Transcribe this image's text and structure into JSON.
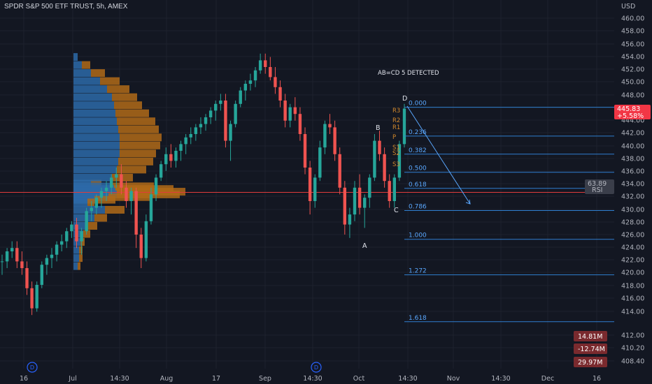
{
  "header": {
    "title": "SPDR S&P 500 ETF TRUST, 5h, AMEX"
  },
  "currency": "USD",
  "axis_right": {
    "ticks": [
      "460.00",
      "458.00",
      "456.00",
      "454.00",
      "452.00",
      "450.00",
      "448.00",
      "446.00",
      "444.00",
      "442.00",
      "440.00",
      "438.00",
      "436.00",
      "434.00",
      "432.00",
      "430.00",
      "428.00",
      "426.00",
      "424.00",
      "422.00",
      "420.00",
      "418.00",
      "416.00",
      "414.00",
      "412.00",
      "410.20",
      "408.40"
    ]
  },
  "axis_bottom": {
    "ticks": [
      "16",
      "Jul",
      "14:30",
      "Aug",
      "17",
      "Sep",
      "14:30",
      "Oct",
      "14:30",
      "Nov",
      "14:30",
      "Dec",
      "16"
    ]
  },
  "price_badge": {
    "price": "445.83",
    "change": "+5.58%",
    "color": "#f23645"
  },
  "rsi_badge": {
    "value": "63.89",
    "label": "RSI"
  },
  "volume_badges": [
    "14.81M",
    "-12.74M",
    "29.97M"
  ],
  "pattern": {
    "label": "AB=CD 5 DETECTED",
    "points": [
      {
        "name": "A",
        "price": 426.5
      },
      {
        "name": "B",
        "price": 442.0
      },
      {
        "name": "C",
        "price": 430.8
      },
      {
        "name": "D",
        "price": 446.5
      }
    ]
  },
  "fib_levels": [
    {
      "label": "0.000",
      "price": 446.0
    },
    {
      "label": "0.236",
      "price": 441.7
    },
    {
      "label": "0.382",
      "price": 439.0
    },
    {
      "label": "0.500",
      "price": 436.3
    },
    {
      "label": "0.618",
      "price": 433.9
    },
    {
      "label": "0.786",
      "price": 430.6
    },
    {
      "label": "1.000",
      "price": 426.3
    },
    {
      "label": "1.272",
      "price": 421.0
    },
    {
      "label": "1.618",
      "price": 414.0
    }
  ],
  "pivots": [
    "R3",
    "R2",
    "R1",
    "P",
    "S1",
    "S2",
    "S3"
  ],
  "event_markers": [
    "D",
    "D"
  ],
  "chart_data": {
    "type": "candlestick",
    "ylim": [
      407,
      462
    ],
    "poc_price": 433.3,
    "candles": [
      [
        423,
        424,
        421,
        423
      ],
      [
        423,
        425,
        422,
        424.5
      ],
      [
        424.5,
        426,
        423.5,
        425
      ],
      [
        425,
        426,
        422,
        423
      ],
      [
        423,
        424.5,
        421,
        422
      ],
      [
        422,
        423,
        418,
        419
      ],
      [
        419,
        420,
        415,
        416
      ],
      [
        416,
        420,
        415.5,
        419.5
      ],
      [
        419.5,
        423,
        419,
        422.5
      ],
      [
        422.5,
        424,
        421,
        423.5
      ],
      [
        423.5,
        425,
        422,
        424
      ],
      [
        424,
        426,
        423,
        425.5
      ],
      [
        425.5,
        427,
        424.5,
        426
      ],
      [
        426,
        428,
        425,
        427.5
      ],
      [
        427.5,
        429,
        426.5,
        428.5
      ],
      [
        428.5,
        429.5,
        425,
        426
      ],
      [
        426,
        428,
        424,
        427.5
      ],
      [
        427.5,
        431,
        427,
        430.5
      ],
      [
        430.5,
        432,
        429,
        431
      ],
      [
        431,
        433,
        430,
        432.5
      ],
      [
        432.5,
        434,
        431,
        433.5
      ],
      [
        433.5,
        435,
        432,
        434
      ],
      [
        434,
        436,
        433,
        435.5
      ],
      [
        435.5,
        437,
        434,
        436
      ],
      [
        436,
        437.5,
        433,
        434
      ],
      [
        434,
        435,
        431,
        432
      ],
      [
        432,
        434,
        430,
        433.5
      ],
      [
        433.5,
        434,
        425,
        427
      ],
      [
        427,
        428,
        422,
        423.5
      ],
      [
        423.5,
        430,
        423,
        429
      ],
      [
        429,
        434,
        428.5,
        433
      ],
      [
        433,
        436,
        432,
        435.5
      ],
      [
        435.5,
        438,
        435,
        437.5
      ],
      [
        437.5,
        440,
        436.5,
        439
      ],
      [
        439,
        440.5,
        437,
        438
      ],
      [
        438,
        440,
        437,
        439.5
      ],
      [
        439.5,
        441,
        438,
        440.5
      ],
      [
        440.5,
        442,
        439,
        441.5
      ],
      [
        441.5,
        443,
        440.5,
        442
      ],
      [
        442,
        443.5,
        441,
        443
      ],
      [
        443,
        444.5,
        442,
        443.5
      ],
      [
        443.5,
        445,
        442.5,
        444.5
      ],
      [
        444.5,
        446,
        443.5,
        445.5
      ],
      [
        445.5,
        447,
        444,
        446.5
      ],
      [
        446.5,
        448,
        445.5,
        447
      ],
      [
        447,
        448,
        440,
        441
      ],
      [
        441,
        444,
        438,
        443.5
      ],
      [
        443.5,
        447,
        443,
        446.5
      ],
      [
        446.5,
        449,
        446,
        448.5
      ],
      [
        448.5,
        450,
        447,
        449.5
      ],
      [
        449.5,
        451,
        448.5,
        450
      ],
      [
        450,
        452,
        449,
        451.5
      ],
      [
        451.5,
        454,
        451,
        453
      ],
      [
        453,
        454,
        451,
        452
      ],
      [
        452,
        453.5,
        450,
        450.5
      ],
      [
        450.5,
        452,
        448,
        449
      ],
      [
        449,
        450,
        446,
        447
      ],
      [
        447,
        448,
        443,
        444
      ],
      [
        444,
        446.5,
        443,
        446
      ],
      [
        446,
        447.5,
        444,
        445
      ],
      [
        445,
        446,
        441,
        442
      ],
      [
        442,
        443,
        436,
        437
      ],
      [
        437,
        438,
        430,
        432
      ],
      [
        432,
        436,
        431,
        435.5
      ],
      [
        435.5,
        441,
        435,
        440
      ],
      [
        440,
        444,
        439,
        443.5
      ],
      [
        443.5,
        445,
        442,
        443
      ],
      [
        443,
        444,
        438,
        439
      ],
      [
        439,
        440,
        433,
        434
      ],
      [
        434,
        435,
        427,
        428.5
      ],
      [
        428.5,
        431,
        426.5,
        430
      ],
      [
        430,
        435,
        429,
        434
      ],
      [
        434,
        436,
        430,
        431
      ],
      [
        431,
        433,
        428,
        432.5
      ],
      [
        432.5,
        436,
        431,
        435.5
      ],
      [
        435.5,
        442,
        435,
        441
      ],
      [
        441,
        442.5,
        438,
        439
      ],
      [
        439,
        440,
        434,
        435
      ],
      [
        435,
        436,
        431,
        432
      ],
      [
        432,
        436,
        431,
        435.5
      ],
      [
        435.5,
        441,
        435,
        440.5
      ],
      [
        440.5,
        446.5,
        440,
        445.8
      ]
    ],
    "profile": [
      [
        434.6,
        25,
        15
      ],
      [
        434.2,
        55,
        60
      ],
      [
        433.8,
        58,
        85
      ],
      [
        433.4,
        60,
        100
      ],
      [
        433.0,
        62,
        90
      ],
      [
        432.6,
        50,
        60
      ],
      [
        432.2,
        30,
        30
      ],
      [
        431.8,
        20,
        10
      ],
      [
        453.5,
        6,
        0
      ],
      [
        452.3,
        12,
        12
      ],
      [
        451.1,
        25,
        20
      ],
      [
        449.9,
        38,
        28
      ],
      [
        448.7,
        48,
        32
      ],
      [
        447.5,
        55,
        36
      ],
      [
        446.3,
        58,
        40
      ],
      [
        445.1,
        60,
        48
      ],
      [
        443.9,
        62,
        55
      ],
      [
        442.7,
        64,
        58
      ],
      [
        441.5,
        66,
        60
      ],
      [
        440.3,
        66,
        58
      ],
      [
        439.1,
        66,
        52
      ],
      [
        437.9,
        64,
        50
      ],
      [
        436.7,
        62,
        42
      ],
      [
        435.5,
        55,
        30
      ],
      [
        430.7,
        45,
        28
      ],
      [
        429.5,
        30,
        18
      ],
      [
        428.3,
        20,
        14
      ],
      [
        427.1,
        14,
        10
      ],
      [
        425.9,
        10,
        6
      ],
      [
        424.7,
        8,
        5
      ],
      [
        423.5,
        8,
        5
      ],
      [
        422.3,
        6,
        4
      ]
    ]
  }
}
